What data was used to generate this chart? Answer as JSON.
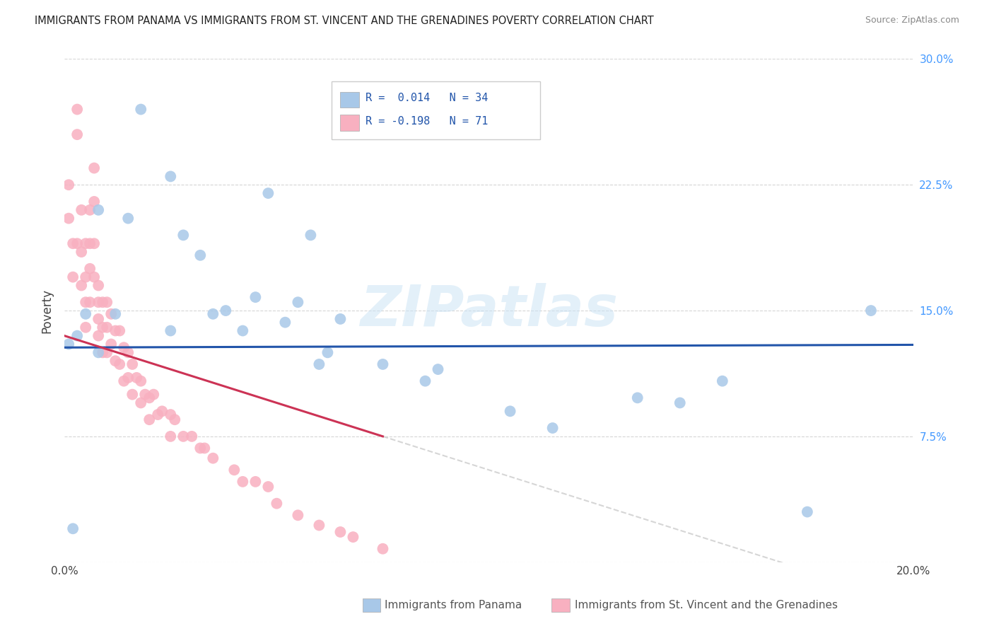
{
  "title": "IMMIGRANTS FROM PANAMA VS IMMIGRANTS FROM ST. VINCENT AND THE GRENADINES POVERTY CORRELATION CHART",
  "source": "Source: ZipAtlas.com",
  "ylabel": "Poverty",
  "xlim": [
    0.0,
    0.2
  ],
  "ylim": [
    0.0,
    0.3
  ],
  "watermark": "ZIPatlas",
  "legend_label_blue": "Immigrants from Panama",
  "legend_label_pink": "Immigrants from St. Vincent and the Grenadines",
  "R_blue": 0.014,
  "N_blue": 34,
  "R_pink": -0.198,
  "N_pink": 71,
  "color_blue": "#a8c8e8",
  "color_blue_line": "#2255aa",
  "color_pink": "#f8b0c0",
  "color_pink_line": "#cc3355",
  "color_dash": "#cccccc",
  "blue_x": [
    0.001,
    0.018,
    0.008,
    0.025,
    0.028,
    0.035,
    0.015,
    0.032,
    0.048,
    0.038,
    0.052,
    0.065,
    0.025,
    0.042,
    0.058,
    0.005,
    0.012,
    0.003,
    0.008,
    0.045,
    0.055,
    0.062,
    0.06,
    0.075,
    0.085,
    0.19,
    0.155,
    0.175,
    0.002,
    0.088,
    0.105,
    0.115,
    0.135,
    0.145
  ],
  "blue_y": [
    0.13,
    0.27,
    0.21,
    0.23,
    0.195,
    0.148,
    0.205,
    0.183,
    0.22,
    0.15,
    0.143,
    0.145,
    0.138,
    0.138,
    0.195,
    0.148,
    0.148,
    0.135,
    0.125,
    0.158,
    0.155,
    0.125,
    0.118,
    0.118,
    0.108,
    0.15,
    0.108,
    0.03,
    0.02,
    0.115,
    0.09,
    0.08,
    0.098,
    0.095
  ],
  "pink_x": [
    0.001,
    0.001,
    0.002,
    0.002,
    0.003,
    0.003,
    0.003,
    0.004,
    0.004,
    0.004,
    0.005,
    0.005,
    0.005,
    0.005,
    0.006,
    0.006,
    0.006,
    0.006,
    0.007,
    0.007,
    0.007,
    0.007,
    0.008,
    0.008,
    0.008,
    0.008,
    0.009,
    0.009,
    0.009,
    0.01,
    0.01,
    0.01,
    0.011,
    0.011,
    0.012,
    0.012,
    0.013,
    0.013,
    0.014,
    0.014,
    0.015,
    0.015,
    0.016,
    0.016,
    0.017,
    0.018,
    0.018,
    0.019,
    0.02,
    0.02,
    0.021,
    0.022,
    0.023,
    0.025,
    0.025,
    0.026,
    0.028,
    0.03,
    0.032,
    0.033,
    0.035,
    0.04,
    0.042,
    0.045,
    0.048,
    0.05,
    0.055,
    0.06,
    0.065,
    0.068,
    0.075
  ],
  "pink_y": [
    0.225,
    0.205,
    0.19,
    0.17,
    0.27,
    0.255,
    0.19,
    0.21,
    0.185,
    0.165,
    0.19,
    0.17,
    0.155,
    0.14,
    0.21,
    0.19,
    0.175,
    0.155,
    0.235,
    0.215,
    0.19,
    0.17,
    0.165,
    0.155,
    0.145,
    0.135,
    0.155,
    0.14,
    0.125,
    0.155,
    0.14,
    0.125,
    0.148,
    0.13,
    0.138,
    0.12,
    0.138,
    0.118,
    0.128,
    0.108,
    0.125,
    0.11,
    0.118,
    0.1,
    0.11,
    0.108,
    0.095,
    0.1,
    0.098,
    0.085,
    0.1,
    0.088,
    0.09,
    0.088,
    0.075,
    0.085,
    0.075,
    0.075,
    0.068,
    0.068,
    0.062,
    0.055,
    0.048,
    0.048,
    0.045,
    0.035,
    0.028,
    0.022,
    0.018,
    0.015,
    0.008
  ]
}
